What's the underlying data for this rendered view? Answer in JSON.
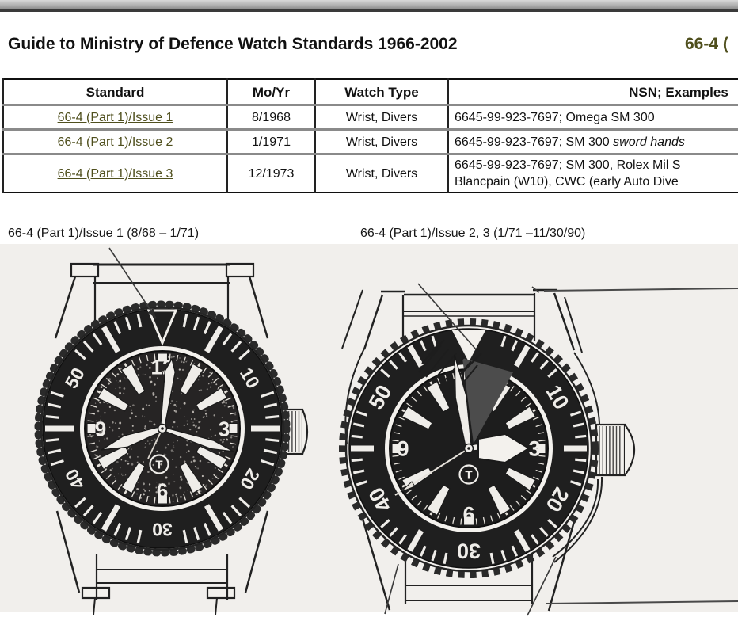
{
  "header": {
    "title": "Guide to Ministry of Defence Watch Standards 1966-2002",
    "right_ref": "66-4 ("
  },
  "colors": {
    "link_olive": "#4f4f1d",
    "table_outer_border": "#101010",
    "row_separator": "#8a8a8a",
    "scan_background": "#f1efec",
    "ink": "#222222"
  },
  "table": {
    "headers": [
      "Standard",
      "Mo/Yr",
      "Watch Type",
      "NSN; Examples"
    ],
    "rows": [
      {
        "standard": "66-4 (Part 1)/Issue 1",
        "mo_yr": "8/1968",
        "watch_type": "Wrist, Divers",
        "nsn": "6645-99-923-7697; Omega SM 300",
        "nsn_italic": ""
      },
      {
        "standard": "66-4 (Part 1)/Issue 2",
        "mo_yr": "1/1971",
        "watch_type": "Wrist, Divers",
        "nsn": "6645-99-923-7697; SM 300 ",
        "nsn_italic": "sword hands"
      },
      {
        "standard": "66-4 (Part 1)/Issue 3",
        "mo_yr": "12/1973",
        "watch_type": "Wrist, Divers",
        "nsn": "6645-99-923-7697; SM 300, Rolex Mil S",
        "nsn_line2": "Blancpain (W10), CWC (early Auto Dive"
      }
    ]
  },
  "figures": {
    "left_caption": "66-4 (Part 1)/Issue 1 (8/68 – 1/71)",
    "right_caption": "66-4 (Part 1)/Issue 2, 3 (1/71 –11/30/90)",
    "left_watch": {
      "bezel_numbers": [
        "10",
        "20",
        "30",
        "40",
        "50"
      ],
      "dial_numbers": [
        "12",
        "3",
        "6",
        "9"
      ],
      "logo_letter": "T"
    },
    "right_watch": {
      "bezel_numbers": [
        "10",
        "20",
        "30",
        "40",
        "50"
      ],
      "dial_numbers": [
        "3",
        "6",
        "9"
      ],
      "logo_letter": "T"
    }
  }
}
